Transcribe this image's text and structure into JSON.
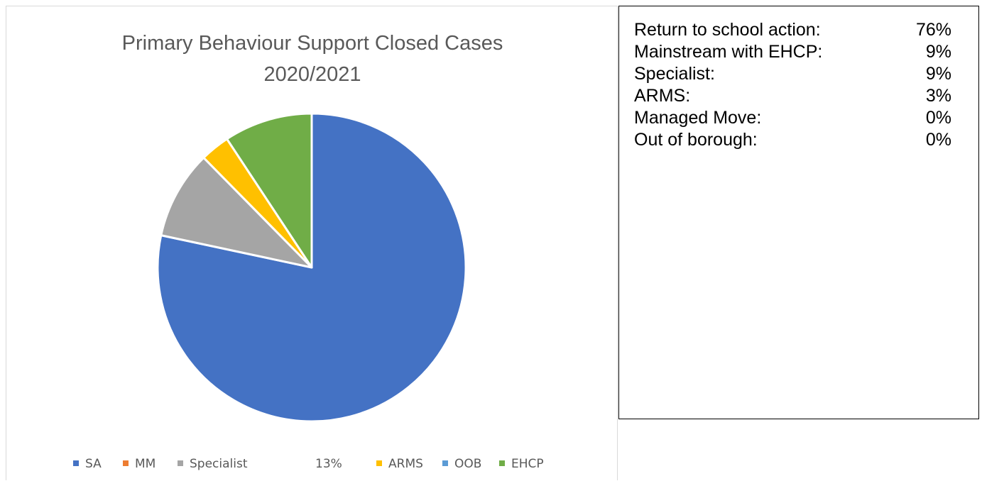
{
  "chart_data": {
    "type": "pie",
    "title": [
      "Primary Behaviour Support Closed Cases",
      "2020/2021"
    ],
    "slices": [
      {
        "name": "SA",
        "value": 76,
        "color": "#4472C4"
      },
      {
        "name": "MM",
        "value": 0,
        "color": "#ED7D31"
      },
      {
        "name": "Specialist",
        "value": 9,
        "color": "#A5A5A5"
      },
      {
        "name": "ARMS",
        "value": 3,
        "color": "#FFC000"
      },
      {
        "name": "OOB",
        "value": 0,
        "color": "#5B9BD5"
      },
      {
        "name": "EHCP",
        "value": 9,
        "color": "#70AD47"
      }
    ],
    "legend_extra": "13%",
    "legend_position": "bottom"
  },
  "stats": [
    {
      "label": "Return to school action:",
      "value": "76%"
    },
    {
      "label": "Mainstream with EHCP:",
      "value": "9%"
    },
    {
      "label": "Specialist:",
      "value": "9%"
    },
    {
      "label": "ARMS:",
      "value": "3%"
    },
    {
      "label": "Managed Move:",
      "value": "0%"
    },
    {
      "label": "Out of borough:",
      "value": "0%"
    }
  ]
}
